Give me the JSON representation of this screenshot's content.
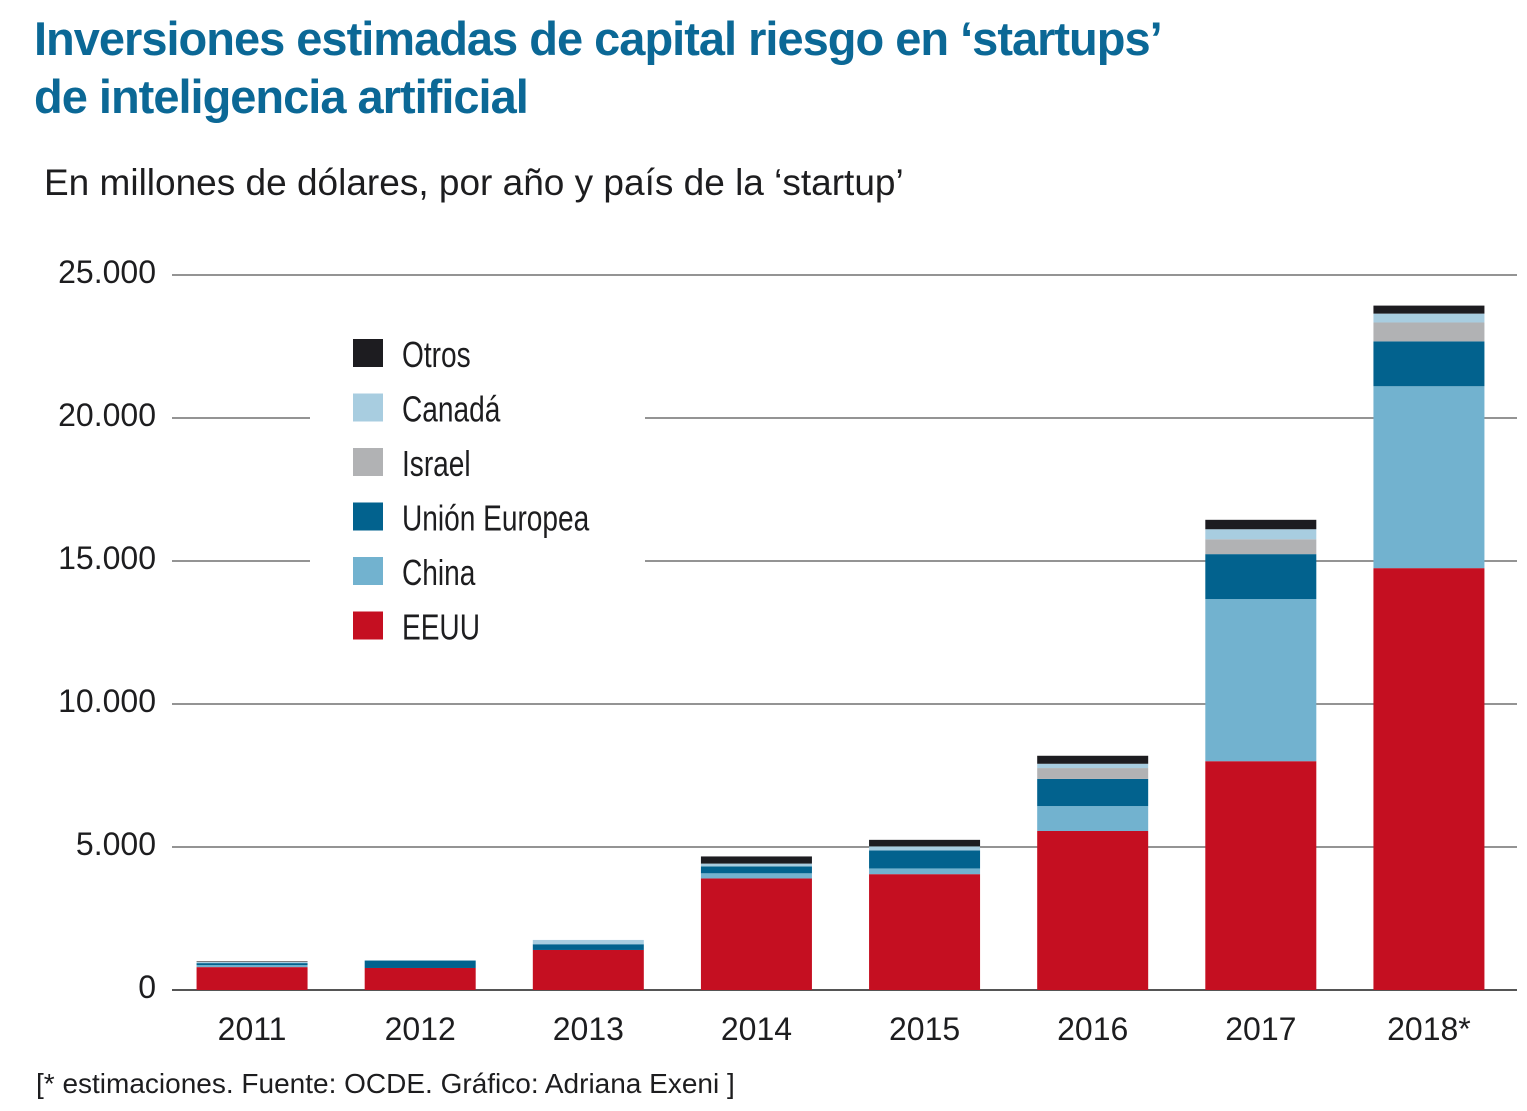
{
  "chart_data": {
    "type": "bar",
    "stacked": true,
    "title": "Inversiones estimadas de capital riesgo en ‘startups’ de inteligencia artificial",
    "title_lines": [
      "Inversiones estimadas de capital riesgo en ‘startups’",
      "de inteligencia artificial"
    ],
    "subtitle": "En millones de dólares, por año y país de la ‘startup’",
    "footer": "[* estimaciones. Fuente: OCDE. Gráfico: Adriana Exeni ]",
    "xlabel": "",
    "ylabel": "",
    "ylim": [
      0,
      25000
    ],
    "yticks": [
      0,
      5000,
      10000,
      15000,
      20000,
      25000
    ],
    "ytick_labels": [
      "0",
      "5.000",
      "10.000",
      "15.000",
      "20.000",
      "25.000"
    ],
    "grid": true,
    "legend_position": "top-left",
    "categories": [
      "2011",
      "2012",
      "2013",
      "2014",
      "2015",
      "2016",
      "2017",
      "2018*"
    ],
    "series": [
      {
        "name": "EEUU",
        "color": "#c50f21",
        "values": [
          800,
          770,
          1400,
          3900,
          4050,
          5560,
          8000,
          14750
        ]
      },
      {
        "name": "China",
        "color": "#72b2cf",
        "values": [
          70,
          0,
          0,
          180,
          200,
          870,
          5670,
          6360
        ]
      },
      {
        "name": "Unión Europea",
        "color": "#02628e",
        "values": [
          70,
          260,
          200,
          240,
          630,
          950,
          1570,
          1570
        ]
      },
      {
        "name": "Israel",
        "color": "#b1b2b4",
        "values": [
          0,
          0,
          0,
          0,
          0,
          380,
          520,
          660
        ]
      },
      {
        "name": "Canadá",
        "color": "#a8cde0",
        "values": [
          40,
          0,
          150,
          100,
          140,
          150,
          350,
          310
        ]
      },
      {
        "name": "Otros",
        "color": "#1d1c20",
        "values": [
          20,
          0,
          0,
          250,
          230,
          280,
          330,
          280
        ]
      }
    ]
  }
}
